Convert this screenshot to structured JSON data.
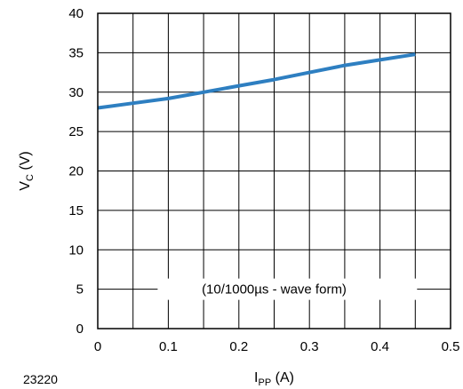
{
  "chart_data": {
    "type": "line",
    "xlabel_main": "I",
    "xlabel_sub": "PP",
    "xlabel_unit": " (A)",
    "ylabel_main": "V",
    "ylabel_sub": "C",
    "ylabel_unit": " (V)",
    "xlim": [
      0,
      0.5
    ],
    "ylim": [
      0,
      40
    ],
    "x_ticks": [
      0,
      0.1,
      0.2,
      0.3,
      0.4,
      0.5
    ],
    "x_tick_labels": [
      "0",
      "0.1",
      "0.2",
      "0.3",
      "0.4",
      "0.5"
    ],
    "x_grid": [
      0,
      0.05,
      0.1,
      0.15,
      0.2,
      0.25,
      0.3,
      0.35,
      0.4,
      0.45,
      0.5
    ],
    "y_ticks": [
      0,
      5,
      10,
      15,
      20,
      25,
      30,
      35,
      40
    ],
    "y_tick_labels": [
      "0",
      "5",
      "10",
      "15",
      "20",
      "25",
      "30",
      "35",
      "40"
    ],
    "grid": true,
    "series": [
      {
        "color": "#2e7fc1",
        "x": [
          0,
          0.05,
          0.1,
          0.15,
          0.2,
          0.25,
          0.3,
          0.35,
          0.4,
          0.45
        ],
        "y": [
          28.0,
          28.6,
          29.2,
          30.0,
          30.8,
          31.6,
          32.5,
          33.4,
          34.1,
          34.8
        ]
      }
    ],
    "annotation": "(10/1000µs - wave form)",
    "figure_code": "23220"
  }
}
